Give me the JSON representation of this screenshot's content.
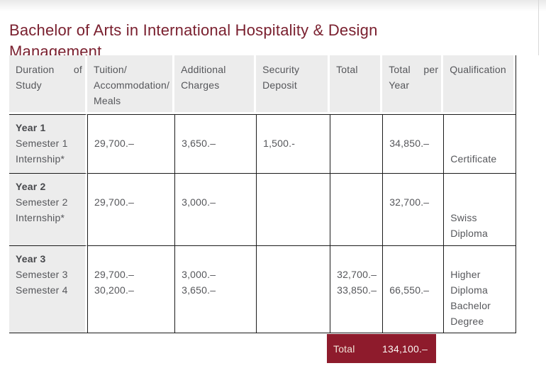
{
  "page": {
    "title_line1": "Bachelor of Arts in International Hospitality & Design",
    "title_line2": "Management"
  },
  "table": {
    "headers": {
      "duration": {
        "l1a": "Duration",
        "l1b": "of",
        "l2": "Study"
      },
      "tuition": {
        "l1": "Tuition/",
        "l2": "Accommodation/",
        "l3": "Meals"
      },
      "additional": {
        "l1": "Additional",
        "l2": "Charges"
      },
      "deposit": {
        "l1": "Security",
        "l2": "Deposit"
      },
      "total": {
        "l1": "Total"
      },
      "total_per_year": {
        "l1a": "Total",
        "l1b": "per",
        "l2": "Year"
      },
      "qualification": {
        "l1": "Qualification"
      }
    },
    "rows": [
      {
        "year": "Year 1",
        "detail1": "Semester 1",
        "detail2": "Internship*",
        "tuition1": "29,700.–",
        "additional1": "3,650.–",
        "deposit1": "1,500.-",
        "total_per_year1": "34,850.–",
        "qualification1": "Certificate"
      },
      {
        "year": "Year 2",
        "detail1": "Semester 2",
        "detail2": "Internship*",
        "tuition1": "29,700.–",
        "additional1": "3,000.–",
        "total_per_year1": "32,700.–",
        "qualification1": "Swiss",
        "qualification2": "Diploma"
      },
      {
        "year": "Year 3",
        "detail1": "Semester 3",
        "detail2": "Semester 4",
        "tuition1": "29,700.–",
        "tuition2": "30,200.–",
        "additional1": "3,000.–",
        "additional2": "3,650.–",
        "total1": "32,700.–",
        "total2": "33,850.–",
        "total_per_year1": "66,550.–",
        "qualification1": "Higher",
        "qualification2": "Diploma",
        "qualification3": "Bachelor",
        "qualification4": "Degree"
      }
    ],
    "footer": {
      "label": "Total",
      "amount": "134,100.–"
    }
  },
  "colors": {
    "accent": "#7a202f",
    "total_box_bg": "#8e1b2c",
    "header_bg": "#ececec",
    "border": "#1b1b1b",
    "body_text": "#56575b"
  }
}
